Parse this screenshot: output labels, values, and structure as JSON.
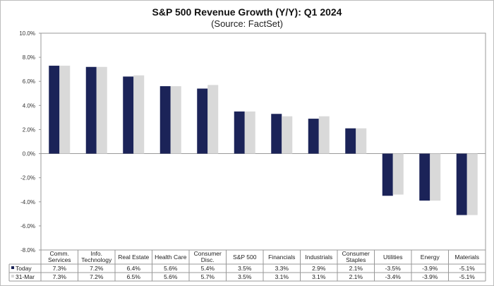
{
  "chart_data": {
    "type": "bar",
    "title": "S&P 500 Revenue Growth (Y/Y):  Q1 2024",
    "subtitle": "(Source: FactSet)",
    "categories": [
      [
        "Comm.",
        "Services"
      ],
      [
        "Info.",
        "Technology"
      ],
      [
        "Real Estate"
      ],
      [
        "Health Care"
      ],
      [
        "Consumer",
        "Disc."
      ],
      [
        "S&P 500"
      ],
      [
        "Financials"
      ],
      [
        "Industrials"
      ],
      [
        "Consumer",
        "Staples"
      ],
      [
        "Utilities"
      ],
      [
        "Energy"
      ],
      [
        "Materials"
      ]
    ],
    "series": [
      {
        "name": "Today",
        "color": "#1b2358",
        "values": [
          7.3,
          7.2,
          6.4,
          5.6,
          5.4,
          3.5,
          3.3,
          2.9,
          2.1,
          -3.5,
          -3.9,
          -5.1
        ]
      },
      {
        "name": "31-Mar",
        "color": "#d9d9d9",
        "values": [
          7.3,
          7.2,
          6.5,
          5.6,
          5.7,
          3.5,
          3.1,
          3.1,
          2.1,
          -3.4,
          -3.9,
          -5.1
        ]
      }
    ],
    "ylim": [
      -8,
      10
    ],
    "yticks": [
      "10.0%",
      "8.0%",
      "6.0%",
      "4.0%",
      "2.0%",
      "0.0%",
      "-2.0%",
      "-4.0%",
      "-6.0%",
      "-8.0%"
    ],
    "data_table": true,
    "legend": "data table"
  }
}
